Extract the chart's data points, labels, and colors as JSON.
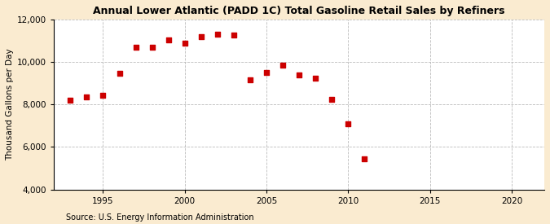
{
  "title": "Annual Lower Atlantic (PADD 1C) Total Gasoline Retail Sales by Refiners",
  "ylabel": "Thousand Gallons per Day",
  "source": "Source: U.S. Energy Information Administration",
  "fig_background_color": "#faebd0",
  "plot_background_color": "#ffffff",
  "marker_color": "#cc0000",
  "years": [
    1993,
    1994,
    1995,
    1996,
    1997,
    1998,
    1999,
    2000,
    2001,
    2002,
    2003,
    2004,
    2005,
    2006,
    2007,
    2008,
    2009,
    2010,
    2011
  ],
  "values": [
    8200,
    8350,
    8430,
    9450,
    10700,
    10700,
    11050,
    10900,
    11200,
    11300,
    11250,
    9150,
    9500,
    9850,
    9400,
    9250,
    8250,
    7100,
    5450
  ],
  "xlim": [
    1992,
    2022
  ],
  "ylim": [
    4000,
    12000
  ],
  "yticks": [
    4000,
    6000,
    8000,
    10000,
    12000
  ],
  "xticks": [
    1995,
    2000,
    2005,
    2010,
    2015,
    2020
  ],
  "title_fontsize": 9,
  "ylabel_fontsize": 7.5,
  "tick_fontsize": 7.5,
  "source_fontsize": 7
}
